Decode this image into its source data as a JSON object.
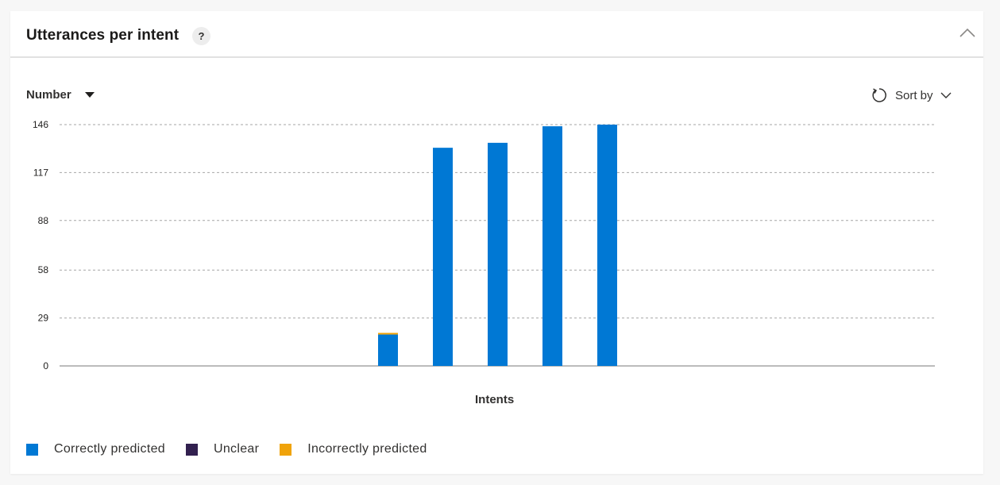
{
  "header": {
    "title": "Utterances per intent",
    "help": "?"
  },
  "controls": {
    "metric_dropdown": "Number",
    "sort_label": "Sort by"
  },
  "chart_data": {
    "type": "bar",
    "stacked": true,
    "xlabel": "Intents",
    "ylabel": "",
    "ylim": [
      0,
      146
    ],
    "yticks": [
      0,
      29,
      58,
      88,
      117,
      146
    ],
    "grid": true,
    "legend_position": "bottom-left",
    "categories": [
      "",
      "",
      "",
      "",
      ""
    ],
    "series": [
      {
        "name": "Correctly predicted",
        "color": "#0078d4",
        "values": [
          19,
          132,
          135,
          145,
          146
        ]
      },
      {
        "name": "Unclear",
        "color": "#32204f",
        "values": [
          0,
          0,
          0,
          0,
          0
        ]
      },
      {
        "name": "Incorrectly predicted",
        "color": "#f0a30a",
        "values": [
          1,
          0,
          0,
          0,
          0
        ]
      }
    ]
  }
}
